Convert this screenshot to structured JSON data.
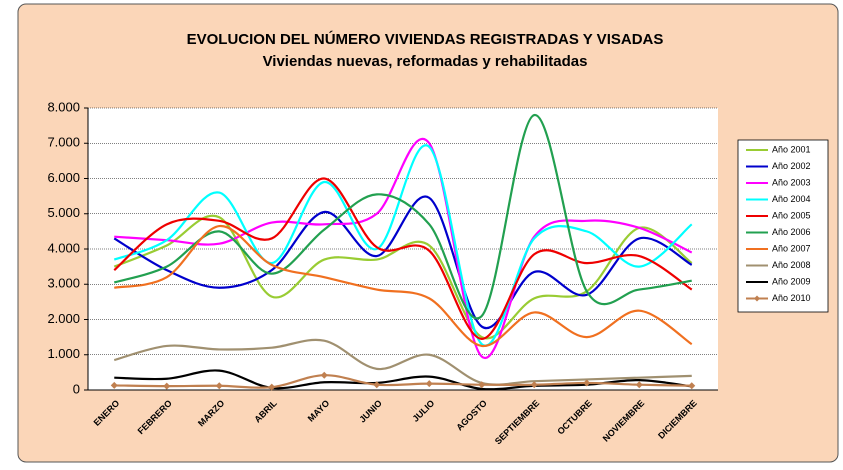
{
  "chart_data": {
    "type": "line",
    "title": "EVOLUCION DEL NÚMERO VIVIENDAS REGISTRADAS Y VISADAS",
    "subtitle": "Viviendas nuevas, reformadas y rehabilitadas",
    "categories": [
      "ENERO",
      "FEBRERO",
      "MARZO",
      "ABRIL",
      "MAYO",
      "JUNIO",
      "JULIO",
      "AGOSTO",
      "SEPTIEMBRE",
      "OCTUBRE",
      "NOVIEMBRE",
      "DICIEMBRE"
    ],
    "ylim": [
      0,
      8000
    ],
    "yticks": [
      0,
      {
        "value": 1000,
        "label": "1.000"
      },
      {
        "value": 2000,
        "label": "2.000"
      },
      {
        "value": 3000,
        "label": "3.000"
      },
      {
        "value": 4000,
        "label": "4.000"
      },
      {
        "value": 5000,
        "label": "5.000"
      },
      {
        "value": 6000,
        "label": "6.000"
      },
      {
        "value": 7000,
        "label": "7.000"
      },
      {
        "value": 8000,
        "label": "8.000"
      }
    ],
    "grid": true,
    "legend": "right",
    "series": [
      {
        "name": "Año 2001",
        "color": "#99cc33",
        "values": [
          3500,
          4100,
          4900,
          2650,
          3700,
          3700,
          4100,
          1500,
          2600,
          2800,
          4600,
          3600
        ]
      },
      {
        "name": "Año 2002",
        "color": "#0000cc",
        "values": [
          4300,
          3400,
          2900,
          3400,
          5050,
          3800,
          5450,
          1800,
          3350,
          2700,
          4300,
          3550
        ]
      },
      {
        "name": "Año 2003",
        "color": "#ff00ff",
        "values": [
          4350,
          4250,
          4150,
          4750,
          4700,
          5000,
          7000,
          950,
          4350,
          4800,
          4600,
          3900
        ]
      },
      {
        "name": "Año 2004",
        "color": "#00ffff",
        "values": [
          3700,
          4250,
          5600,
          3600,
          5900,
          4000,
          6900,
          1300,
          4300,
          4500,
          3500,
          4700
        ]
      },
      {
        "name": "Año 2005",
        "color": "#ee0000",
        "values": [
          3400,
          4700,
          4800,
          4300,
          6000,
          4050,
          3950,
          1450,
          3850,
          3600,
          3800,
          2850
        ]
      },
      {
        "name": "Año 2006",
        "color": "#22a050",
        "values": [
          3050,
          3500,
          4500,
          3300,
          4550,
          5550,
          4700,
          2100,
          7800,
          2800,
          2850,
          3100
        ]
      },
      {
        "name": "Año 2007",
        "color": "#f07020",
        "values": [
          2900,
          3200,
          4650,
          3550,
          3200,
          2850,
          2600,
          1250,
          2200,
          1500,
          2250,
          1300
        ]
      },
      {
        "name": "Año 2008",
        "color": "#a09070",
        "values": [
          850,
          1250,
          1150,
          1200,
          1400,
          600,
          1000,
          200,
          250,
          300,
          350,
          400
        ]
      },
      {
        "name": "Año 2009",
        "color": "#000000",
        "values": [
          350,
          320,
          550,
          60,
          220,
          200,
          380,
          30,
          120,
          150,
          280,
          100
        ]
      },
      {
        "name": "Año 2010",
        "color": "#c08050",
        "marker": "diamond",
        "values": [
          130,
          110,
          120,
          80,
          420,
          150,
          180,
          150,
          150,
          200,
          150,
          120
        ]
      }
    ]
  }
}
